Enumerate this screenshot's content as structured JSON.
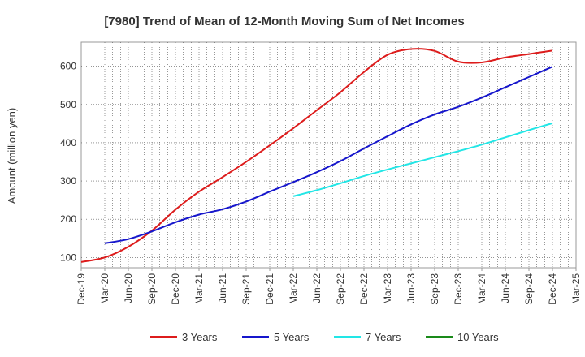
{
  "chart_data": {
    "type": "line",
    "title": "[7980]  Trend of Mean of 12-Month Moving Sum of Net Incomes",
    "xlabel": "",
    "ylabel": "Amount (million yen)",
    "x": [
      "Dec-19",
      "Mar-20",
      "Jun-20",
      "Sep-20",
      "Dec-20",
      "Mar-21",
      "Jun-21",
      "Sep-21",
      "Dec-21",
      "Mar-22",
      "Jun-22",
      "Sep-22",
      "Dec-22",
      "Mar-23",
      "Jun-23",
      "Sep-23",
      "Dec-23",
      "Mar-24",
      "Jun-24",
      "Sep-24",
      "Dec-24",
      "Mar-25"
    ],
    "ylim": [
      73,
      663
    ],
    "yticks": [
      100,
      200,
      300,
      400,
      500,
      600
    ],
    "grid": true,
    "legend_position": "bottom",
    "series": [
      {
        "name": "3 Years",
        "color": "#dd1c1c",
        "values": [
          88,
          100,
          128,
          170,
          225,
          272,
          310,
          350,
          393,
          438,
          485,
          532,
          585,
          630,
          645,
          640,
          612,
          610,
          623,
          632,
          641,
          null
        ]
      },
      {
        "name": "5 Years",
        "color": "#1616cc",
        "values": [
          null,
          137,
          148,
          168,
          192,
          212,
          226,
          246,
          272,
          297,
          323,
          352,
          385,
          417,
          448,
          474,
          494,
          518,
          545,
          572,
          599,
          null
        ]
      },
      {
        "name": "7 Years",
        "color": "#22e6e6",
        "values": [
          null,
          null,
          null,
          null,
          null,
          null,
          null,
          null,
          null,
          260,
          276,
          294,
          313,
          330,
          346,
          362,
          378,
          395,
          414,
          433,
          451,
          null
        ]
      },
      {
        "name": "10 Years",
        "color": "#1a8a1a",
        "values": [
          null,
          null,
          null,
          null,
          null,
          null,
          null,
          null,
          null,
          null,
          null,
          null,
          null,
          null,
          null,
          null,
          null,
          null,
          null,
          null,
          null,
          null
        ]
      }
    ]
  }
}
